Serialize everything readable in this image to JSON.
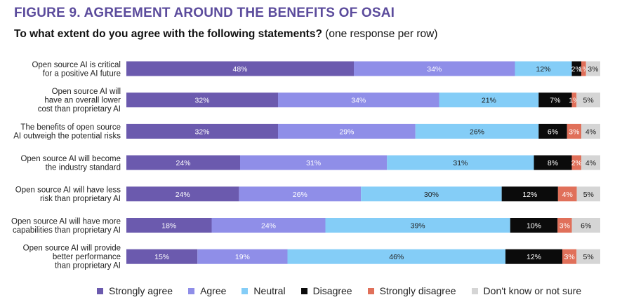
{
  "figure_title": "FIGURE 9. AGREEMENT AROUND THE BENEFITS OF OSAI",
  "question": {
    "bold": "To what extent do you agree with the following statements?",
    "normal": " (one response per row)"
  },
  "colors": {
    "strongly_agree": "#6b5aae",
    "agree": "#8f8ee8",
    "neutral": "#84cdf7",
    "disagree": "#0b0b0b",
    "strongly_disagree": "#e0705a",
    "dont_know": "#d5d5d5"
  },
  "chart_data": {
    "type": "bar",
    "orientation": "horizontal",
    "stacked": true,
    "xlim": [
      0,
      100
    ],
    "unit": "%",
    "legend_position": "bottom",
    "categories": [
      [
        "Open source AI is critical",
        "for a positive AI future"
      ],
      [
        "Open source AI will",
        "have an overall lower",
        "cost than proprietary AI"
      ],
      [
        "The benefits of open source",
        "AI outweigh the potential risks"
      ],
      [
        "Open source AI will become",
        "the industry standard"
      ],
      [
        "Open source AI will have less",
        "risk than proprietary AI"
      ],
      [
        "Open source AI will have more",
        "capabilities than proprietary AI"
      ],
      [
        "Open source AI will provide",
        "better performance",
        "than proprietary AI"
      ]
    ],
    "series": [
      {
        "name": "Strongly agree",
        "color_key": "strongly_agree",
        "values": [
          48,
          32,
          32,
          24,
          24,
          18,
          15
        ],
        "labels": [
          "48%",
          "32%",
          "32%",
          "24%",
          "24%",
          "18%",
          "15%"
        ]
      },
      {
        "name": "Agree",
        "color_key": "agree",
        "values": [
          34,
          34,
          29,
          31,
          26,
          24,
          19
        ],
        "labels": [
          "34%",
          "34%",
          "29%",
          "31%",
          "26%",
          "24%",
          "19%"
        ]
      },
      {
        "name": "Neutral",
        "color_key": "neutral",
        "values": [
          12,
          21,
          26,
          31,
          30,
          39,
          46
        ],
        "labels": [
          "12%",
          "21%",
          "26%",
          "31%",
          "30%",
          "39%",
          "46%"
        ]
      },
      {
        "name": "Disagree",
        "color_key": "disagree",
        "values": [
          2,
          7,
          6,
          8,
          12,
          10,
          12
        ],
        "labels": [
          "2%",
          "7%",
          "6%",
          "8%",
          "12%",
          "10%",
          "12%"
        ]
      },
      {
        "name": "Strongly disagree",
        "color_key": "strongly_disagree",
        "values": [
          1,
          1,
          3,
          2,
          4,
          3,
          3
        ],
        "labels": [
          "1%",
          "1%",
          "3%",
          "2%",
          "4%",
          "3%",
          "3%"
        ]
      },
      {
        "name": "Don't know or not sure",
        "color_key": "dont_know",
        "values": [
          3,
          5,
          4,
          4,
          5,
          6,
          5
        ],
        "labels": [
          "3%",
          "5%",
          "4%",
          "4%",
          "5%",
          "6%",
          "5%"
        ]
      }
    ]
  }
}
